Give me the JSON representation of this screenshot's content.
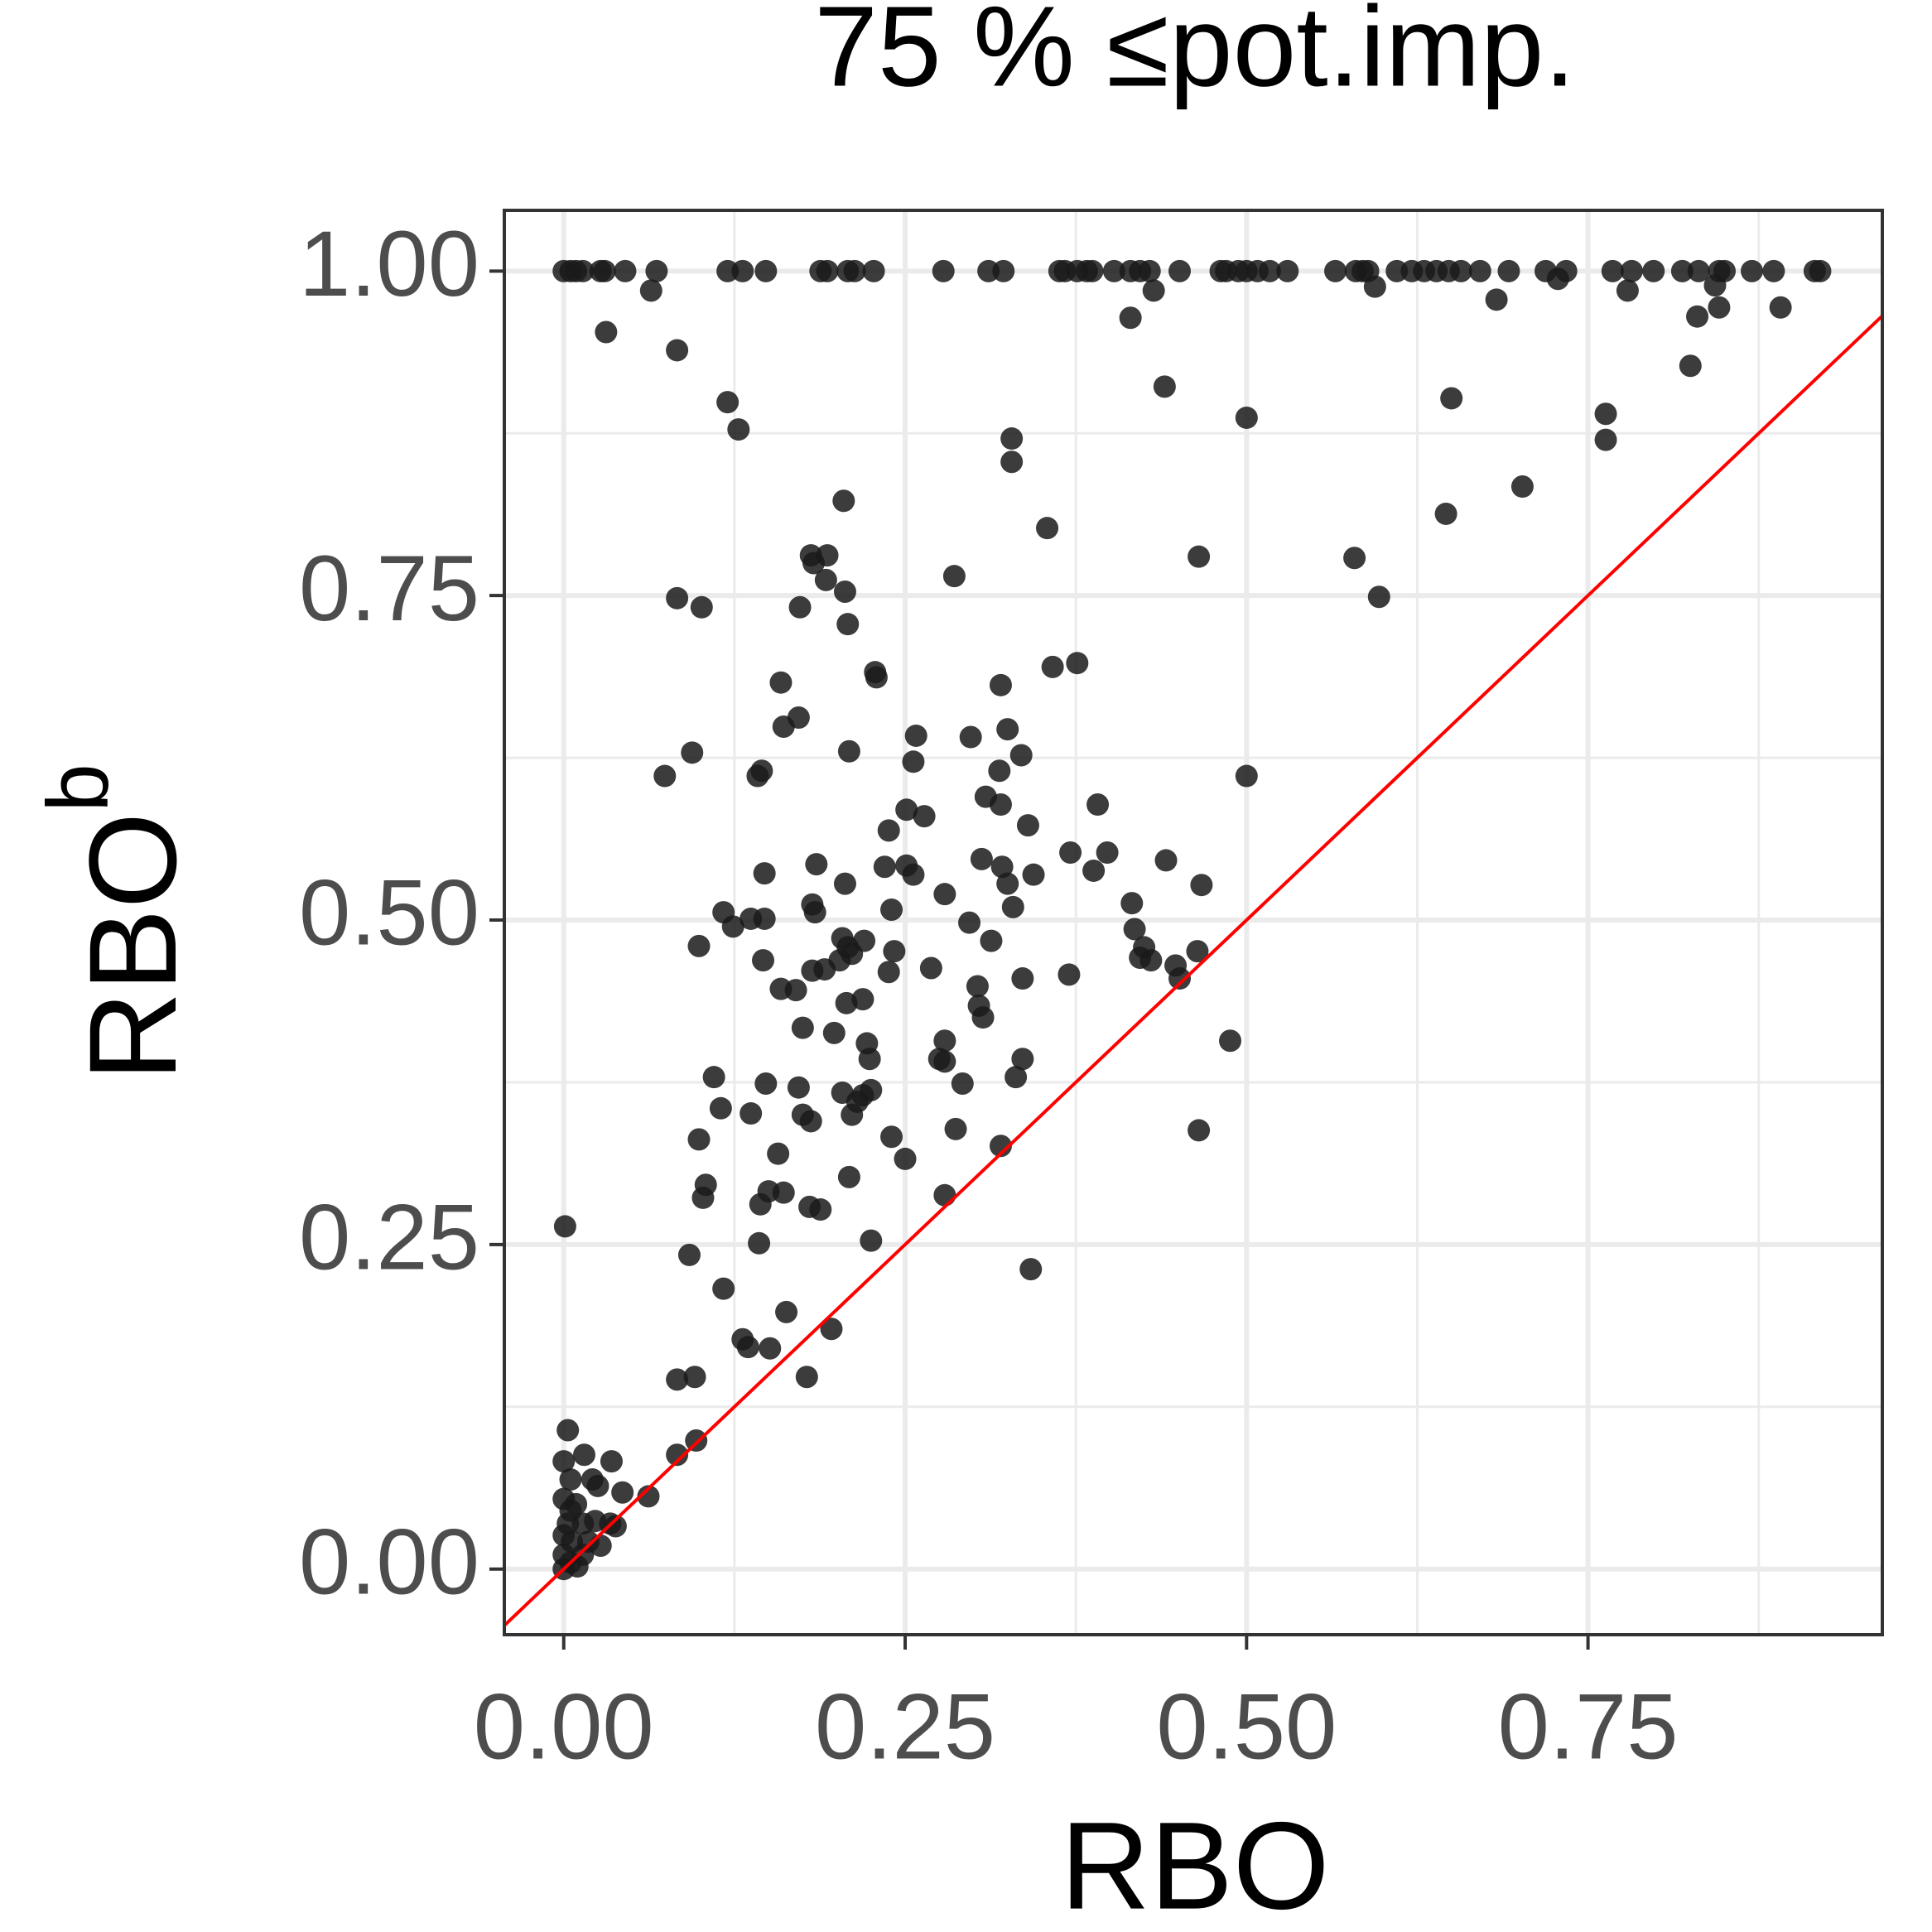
{
  "chart_data": {
    "type": "scatter",
    "title": "75 % ≤pot.imp.",
    "x_label": "RBO",
    "y_label": "RBO",
    "y_label_superscript": "b",
    "xlim": [
      -0.0435,
      0.9655
    ],
    "ylim": [
      -0.0506,
      1.0468
    ],
    "xticks": [
      {
        "value": 0,
        "label": "0.00"
      },
      {
        "value": 0.25,
        "label": "0.25"
      },
      {
        "value": 0.5,
        "label": "0.50"
      },
      {
        "value": 0.75,
        "label": "0.75"
      }
    ],
    "yticks": [
      {
        "value": 0,
        "label": "0.00"
      },
      {
        "value": 0.25,
        "label": "0.25"
      },
      {
        "value": 0.5,
        "label": "0.50"
      },
      {
        "value": 0.75,
        "label": "0.75"
      },
      {
        "value": 1,
        "label": "1.00"
      }
    ],
    "minor_xticks": [
      0.125,
      0.375,
      0.625,
      0.875
    ],
    "minor_yticks": [
      0.125,
      0.375,
      0.625,
      0.875
    ],
    "grid": true,
    "reference_line": {
      "slope": 1,
      "intercept": 0,
      "color": "#ff0000"
    },
    "series": [
      {
        "color": "#1a1a1a",
        "x": [
          0,
          0.005,
          0.009,
          0.014,
          0.027,
          0.03,
          0.045,
          0.068,
          0.12,
          0.131,
          0.148,
          0.188,
          0.193,
          0.208,
          0.213,
          0.227,
          0.278,
          0.311,
          0.322,
          0.363,
          0.367,
          0.376,
          0.383,
          0.387,
          0.403,
          0.415,
          0.422,
          0.429,
          0.451,
          0.481,
          0.485,
          0.494,
          0.5,
          0.508,
          0.517,
          0.53,
          0.565,
          0.58,
          0.585,
          0.589,
          0.61,
          0.621,
          0.63,
          0.639,
          0.648,
          0.657,
          0.671,
          0.692,
          0.719,
          0.734,
          0.768,
          0.782,
          0.798,
          0.819,
          0.831,
          0.846,
          0.85,
          0.87,
          0.886,
          0.916,
          0.92,
          0.064,
          0.031,
          0.083,
          0.12,
          0.128,
          0.205,
          0.328,
          0.328,
          0.354,
          0.181,
          0.193,
          0.183,
          0.192,
          0.206,
          0.286,
          0.083,
          0.101,
          0.173,
          0.208,
          0.415,
          0.432,
          0.44,
          0.5,
          0.465,
          0.594,
          0.683,
          0.65,
          0.646,
          0.702,
          0.579,
          0.597,
          0.763,
          0.763,
          0.779,
          0.825,
          0.83,
          0.843,
          0.846,
          0.891,
          0.728,
          0.5,
          0.228,
          0.229,
          0.159,
          0.32,
          0.358,
          0.376,
          0.172,
          0.161,
          0.258,
          0.325,
          0.298,
          0.094,
          0.209,
          0.256,
          0.335,
          0.074,
          0.145,
          0.142,
          0.319,
          0.309,
          0.32,
          0.391,
          0.251,
          0.264,
          0.238,
          0.34,
          0.371,
          0.398,
          0.185,
          0.235,
          0.251,
          0.306,
          0.321,
          0.441,
          0.388,
          0.147,
          0.256,
          0.344,
          0.206,
          0.325,
          0.467,
          0.279,
          0.182,
          0.416,
          0.24,
          0.329,
          0.184,
          0.117,
          0.137,
          0.147,
          0.124,
          0.297,
          0.418,
          0.204,
          0.22,
          0.313,
          0.099,
          0.208,
          0.425,
          0.211,
          0.242,
          0.464,
          0.202,
          0.422,
          0.43,
          0.146,
          0.448,
          0.269,
          0.238,
          0.182,
          0.191,
          0.37,
          0.451,
          0.336,
          0.303,
          0.159,
          0.17,
          0.207,
          0.219,
          0.304,
          0.307,
          0.175,
          0.198,
          0.222,
          0.279,
          0.488,
          0.224,
          0.275,
          0.279,
          0.336,
          0.11,
          0.292,
          0.331,
          0.148,
          0.172,
          0.225,
          0.204,
          0.219,
          0.115,
          0.215,
          0.137,
          0.175,
          0.181,
          0.211,
          0.287,
          0.465,
          0.24,
          0.099,
          0.32,
          0.157,
          0.25,
          0.209,
          0.104,
          0.102,
          0.15,
          0.161,
          0.279,
          0.144,
          0.18,
          0.188,
          0.001,
          0.143,
          0.225,
          0.092,
          0.342,
          0.117,
          0.163,
          0.196,
          0.131,
          0.135,
          0.151,
          0.178,
          0.083,
          0.096,
          0.097,
          0.083,
          0.062,
          0.043,
          0.035,
          0.015,
          0.003,
          0,
          0.005,
          0.021,
          0.025,
          0,
          0.005,
          0.014,
          0.023,
          0.034,
          0.038,
          0,
          0.006,
          0.018,
          0.027,
          0,
          0.005,
          0.01,
          0,
          0.014,
          0.003,
          0.009
        ],
        "values": [
          1,
          1,
          1,
          1,
          1,
          1,
          1,
          1,
          1,
          1,
          1,
          1,
          1,
          1,
          1,
          1,
          1,
          1,
          1,
          1,
          1,
          1,
          1,
          1,
          1,
          1,
          1,
          1,
          1,
          1,
          1,
          1,
          1,
          1,
          1,
          1,
          1,
          1,
          1,
          1,
          1,
          1,
          1,
          1,
          1,
          1,
          1,
          1,
          1,
          1,
          1,
          1,
          1,
          1,
          1,
          1,
          1,
          1,
          1,
          1,
          1,
          0.985,
          0.953,
          0.939,
          0.899,
          0.878,
          0.823,
          0.871,
          0.853,
          0.802,
          0.781,
          0.781,
          0.775,
          0.762,
          0.753,
          0.765,
          0.748,
          0.741,
          0.741,
          0.728,
          0.964,
          0.985,
          0.911,
          0.887,
          0.78,
          0.988,
          0.978,
          0.902,
          0.813,
          0.834,
          0.779,
          0.749,
          0.89,
          0.87,
          0.985,
          0.927,
          0.965,
          0.989,
          0.972,
          0.972,
          0.994,
          0.611,
          0.691,
          0.687,
          0.683,
          0.681,
          0.695,
          0.698,
          0.656,
          0.649,
          0.642,
          0.647,
          0.641,
          0.629,
          0.63,
          0.622,
          0.627,
          0.611,
          0.615,
          0.611,
          0.615,
          0.595,
          0.589,
          0.589,
          0.585,
          0.58,
          0.569,
          0.573,
          0.552,
          0.552,
          0.543,
          0.541,
          0.542,
          0.547,
          0.541,
          0.546,
          0.538,
          0.536,
          0.535,
          0.535,
          0.528,
          0.528,
          0.527,
          0.52,
          0.512,
          0.513,
          0.508,
          0.51,
          0.506,
          0.506,
          0.501,
          0.501,
          0.495,
          0.498,
          0.493,
          0.486,
          0.484,
          0.484,
          0.48,
          0.479,
          0.479,
          0.474,
          0.476,
          0.476,
          0.469,
          0.471,
          0.469,
          0.469,
          0.465,
          0.463,
          0.46,
          0.461,
          0.462,
          0.458,
          0.455,
          0.455,
          0.449,
          0.447,
          0.446,
          0.436,
          0.439,
          0.434,
          0.425,
          0.417,
          0.413,
          0.405,
          0.407,
          0.407,
          0.393,
          0.393,
          0.391,
          0.393,
          0.379,
          0.374,
          0.379,
          0.374,
          0.371,
          0.369,
          0.367,
          0.365,
          0.355,
          0.36,
          0.351,
          0.35,
          0.345,
          0.35,
          0.339,
          0.338,
          0.333,
          0.331,
          0.326,
          0.32,
          0.316,
          0.302,
          0.296,
          0.286,
          0.291,
          0.29,
          0.288,
          0.281,
          0.279,
          0.277,
          0.264,
          0.251,
          0.253,
          0.242,
          0.231,
          0.216,
          0.198,
          0.185,
          0.177,
          0.171,
          0.17,
          0.148,
          0.146,
          0.148,
          0.099,
          0.088,
          0.056,
          0.059,
          0.083,
          0.088,
          0.107,
          0.083,
          0.069,
          0.069,
          0.064,
          0.054,
          0.045,
          0.035,
          0.037,
          0.035,
          0.033,
          0.026,
          0.021,
          0.021,
          0.018,
          0.011,
          0.005,
          0.002,
          0,
          0.011,
          0.035,
          0.05
        ]
      }
    ]
  }
}
